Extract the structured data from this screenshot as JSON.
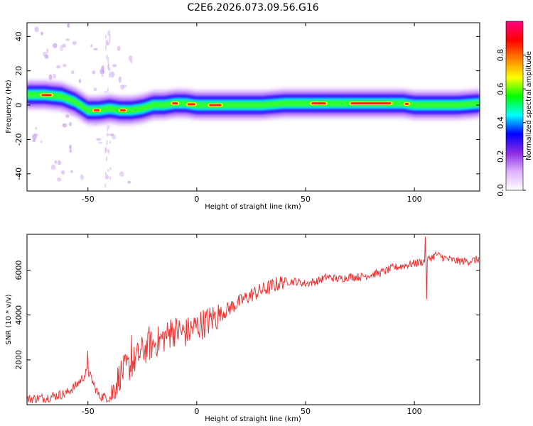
{
  "page_title": "C2E6.2026.073.09.56.G16",
  "chart_data": [
    {
      "type": "heatmap",
      "title": "C2E6.2026.073.09.56.G16",
      "xlabel": "Height of straight line (km)",
      "ylabel": "Frequency (Hz)",
      "xlim": [
        -78,
        130
      ],
      "ylim": [
        -50,
        48
      ],
      "x_ticks": [
        -50,
        0,
        50,
        100
      ],
      "y_ticks": [
        -40,
        -20,
        0,
        20,
        40
      ],
      "grid": false,
      "ridge_frequency": {
        "x": [
          -78,
          -70,
          -62,
          -56,
          -50,
          -45,
          -40,
          -35,
          -30,
          -25,
          -20,
          -15,
          -10,
          -5,
          0,
          5,
          10,
          20,
          30,
          40,
          50,
          60,
          70,
          80,
          90,
          95,
          100,
          110,
          120,
          130
        ],
        "y": [
          6,
          6,
          5,
          2,
          -3,
          -3,
          -2,
          -3,
          -3,
          -2,
          0,
          0,
          1,
          1,
          0,
          0,
          0,
          0,
          0,
          1,
          1,
          1,
          1,
          1,
          1,
          1,
          0,
          0,
          0,
          1
        ]
      },
      "colorbar": {
        "label": "Normalized spectral amplitude",
        "min": 0.0,
        "max": 1.0,
        "ticks": [
          "0.0",
          "0.2",
          "0.4",
          "0.6",
          "0.8"
        ],
        "tick_values": [
          0.0,
          0.2,
          0.4,
          0.6,
          0.8
        ],
        "colors": [
          "#ffffff",
          "#e0b0ff",
          "#8a2be2",
          "#0000ff",
          "#00ffff",
          "#00ff00",
          "#ffff00",
          "#ff8000",
          "#ff0000",
          "#ff0080"
        ]
      }
    },
    {
      "type": "line",
      "xlabel": "Height of straight line (km)",
      "ylabel": "SNR (10 * v/v)",
      "xlim": [
        -78,
        130
      ],
      "ylim": [
        0,
        7600
      ],
      "x_ticks": [
        -50,
        0,
        50,
        100
      ],
      "y_ticks": [
        2000,
        4000,
        6000
      ],
      "grid": false,
      "color": "#ee3333",
      "x": [
        -78,
        -70,
        -60,
        -55,
        -50,
        -45,
        -40,
        -35,
        -30,
        -25,
        -20,
        -15,
        -10,
        -5,
        0,
        5,
        10,
        15,
        20,
        25,
        30,
        35,
        40,
        45,
        50,
        55,
        60,
        65,
        70,
        75,
        80,
        85,
        90,
        95,
        100,
        105,
        110,
        115,
        120,
        125,
        130
      ],
      "y": [
        250,
        300,
        500,
        900,
        1500,
        400,
        300,
        1400,
        1800,
        2400,
        2700,
        3000,
        3300,
        3200,
        3500,
        3700,
        4000,
        4300,
        4600,
        4900,
        5100,
        5300,
        5500,
        5500,
        5400,
        5500,
        5700,
        5600,
        5700,
        5700,
        5800,
        5900,
        6100,
        6200,
        6300,
        6400,
        6700,
        6500,
        6400,
        6400,
        6500
      ],
      "spikes": [
        {
          "x": -50,
          "y": 2400
        },
        {
          "x": -30,
          "y": 3100
        },
        {
          "x": -22,
          "y": 3500
        },
        {
          "x": -12,
          "y": 3800
        },
        {
          "x": 105,
          "y": 7500
        },
        {
          "x": 105.5,
          "y": 4700
        }
      ]
    }
  ]
}
